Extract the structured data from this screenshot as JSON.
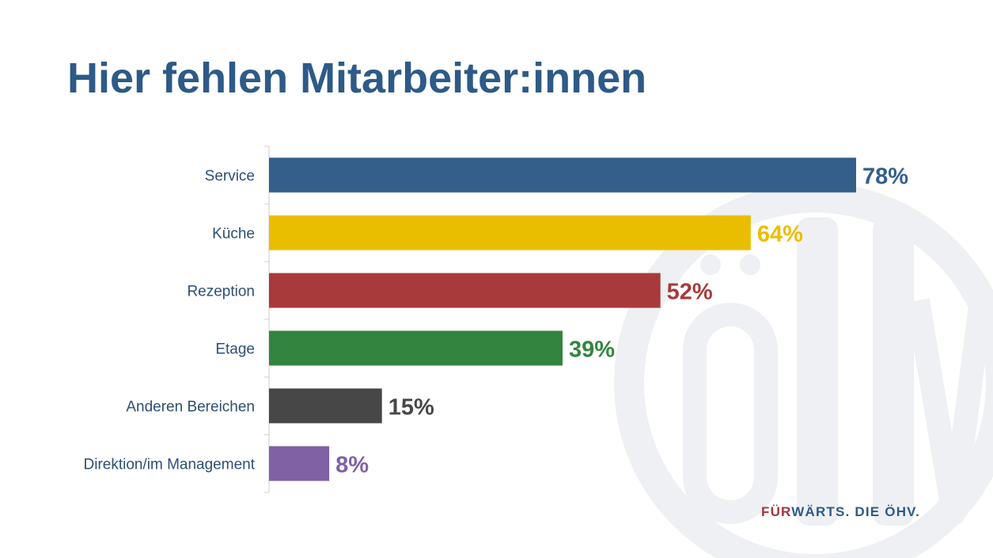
{
  "title": "Hier fehlen Mitarbeiter:innen",
  "chart_data": {
    "type": "bar",
    "orientation": "horizontal",
    "categories": [
      "Service",
      "Küche",
      "Rezeption",
      "Etage",
      "Anderen Bereichen",
      "Direktion/im Management"
    ],
    "values": [
      78,
      64,
      52,
      39,
      15,
      8
    ],
    "value_labels": [
      "78%",
      "64%",
      "52%",
      "39%",
      "15%",
      "8%"
    ],
    "colors": [
      "#345f8b",
      "#e9be00",
      "#a83a3b",
      "#33843f",
      "#474747",
      "#8061a3"
    ],
    "unit": "%",
    "xlim": [
      0,
      78
    ],
    "grid": false,
    "legend": "none"
  },
  "footer": {
    "part1": "FÜR",
    "part2": "WÄRTS. DIE ÖHV."
  },
  "watermark": {
    "text": "ÖHV",
    "color": "#eef0f3"
  }
}
